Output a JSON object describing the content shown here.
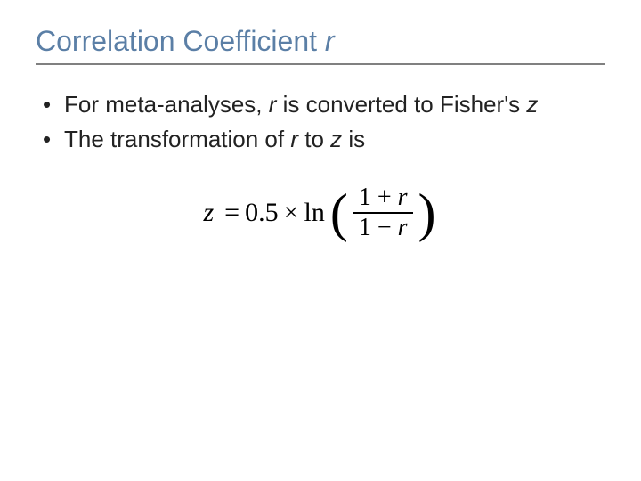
{
  "title": {
    "prefix": "Correlation Coefficient ",
    "var": "r",
    "color": "#5b7fa6",
    "underline_color": "#808080",
    "fontsize": 32
  },
  "bullets": [
    {
      "segments": [
        {
          "text": "For meta-analyses, ",
          "italic": false
        },
        {
          "text": "r",
          "italic": true
        },
        {
          "text": " is converted to Fisher's ",
          "italic": false
        },
        {
          "text": "z",
          "italic": true
        }
      ]
    },
    {
      "segments": [
        {
          "text": "The transformation of ",
          "italic": false
        },
        {
          "text": "r",
          "italic": true
        },
        {
          "text": " to ",
          "italic": false
        },
        {
          "text": "z",
          "italic": true
        },
        {
          "text": " is",
          "italic": false
        }
      ]
    }
  ],
  "body_fontsize": 26,
  "body_color": "#222222",
  "formula": {
    "lhs": "z",
    "eq": "=",
    "coeff": "0.5",
    "times": "×",
    "ln": "ln",
    "lparen": "(",
    "rparen": ")",
    "numerator_prefix": "1 + ",
    "numerator_var": "r",
    "denominator_prefix": "1 − ",
    "denominator_var": "r",
    "fontsize": 30,
    "color": "#000000"
  },
  "background_color": "#ffffff"
}
